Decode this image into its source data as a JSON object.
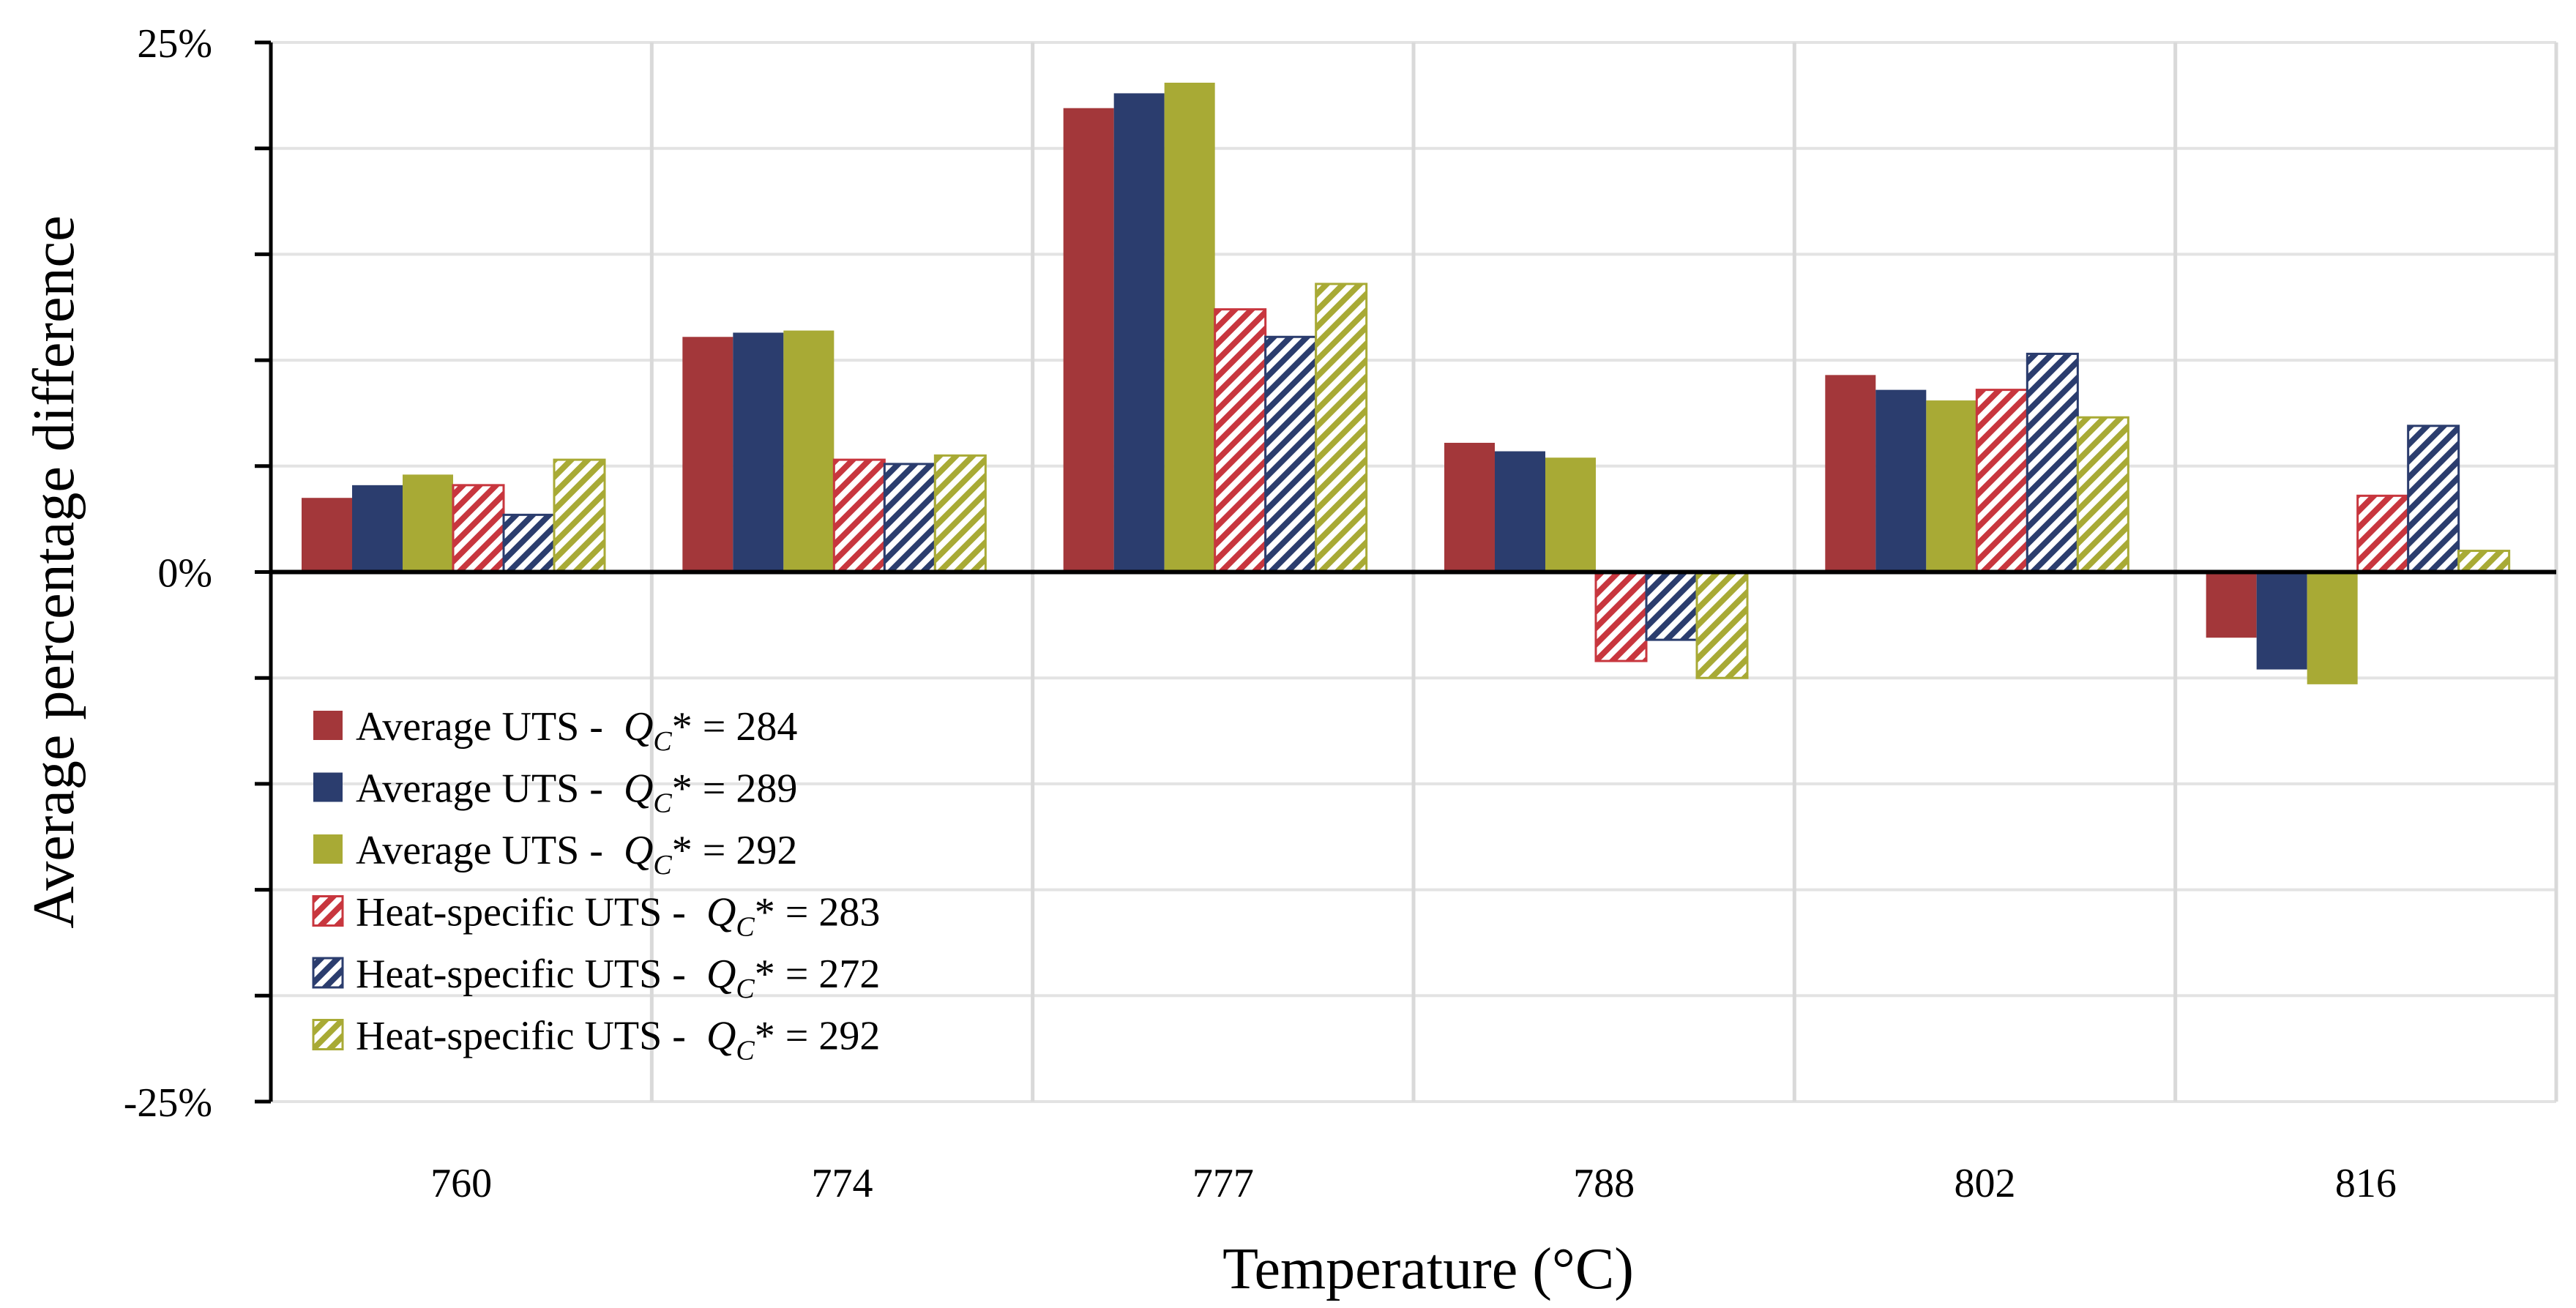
{
  "chart_data": {
    "type": "bar",
    "title": "",
    "xlabel": "Temperature (°C)",
    "ylabel": "Average percentage difference",
    "ylim": [
      -25,
      25
    ],
    "y_ticks": [
      {
        "value": 25,
        "label": "25%"
      },
      {
        "value": 0,
        "label": "0%"
      },
      {
        "value": -25,
        "label": "-25%"
      }
    ],
    "grid": true,
    "legend_position": "bottom-left",
    "categories": [
      "760",
      "774",
      "777",
      "788",
      "802",
      "816"
    ],
    "series": [
      {
        "name": "Average UTS - Q_C* = 284",
        "label_prefix": "Average UTS - ",
        "q_value": "284",
        "color": "#A3373A",
        "pattern": "solid",
        "values": [
          3.5,
          11.1,
          21.9,
          6.1,
          9.3,
          -3.1
        ]
      },
      {
        "name": "Average UTS - Q_C* = 289",
        "label_prefix": "Average UTS - ",
        "q_value": "289",
        "color": "#2B3D6E",
        "pattern": "solid",
        "values": [
          4.1,
          11.3,
          22.6,
          5.7,
          8.6,
          -4.6
        ]
      },
      {
        "name": "Average UTS - Q_C* = 292",
        "label_prefix": "Average UTS - ",
        "q_value": "292",
        "color": "#A8AA35",
        "pattern": "solid",
        "values": [
          4.6,
          11.4,
          23.1,
          5.4,
          8.1,
          -5.3
        ]
      },
      {
        "name": "Heat-specific UTS - Q_C* = 283",
        "label_prefix": "Heat-specific UTS - ",
        "q_value": "283",
        "color": "#C8363E",
        "pattern": "hatch",
        "values": [
          4.1,
          5.3,
          12.4,
          -4.2,
          8.6,
          3.6
        ]
      },
      {
        "name": "Heat-specific UTS - Q_C* = 272",
        "label_prefix": "Heat-specific UTS - ",
        "q_value": "272",
        "color": "#2B3D6E",
        "pattern": "hatch",
        "values": [
          2.7,
          5.1,
          11.1,
          -3.2,
          10.3,
          6.9
        ]
      },
      {
        "name": "Heat-specific UTS - Q_C* = 292",
        "label_prefix": "Heat-specific UTS - ",
        "q_value": "292",
        "color": "#A8AA35",
        "pattern": "hatch",
        "values": [
          5.3,
          5.5,
          13.6,
          -5.0,
          7.3,
          1.0
        ]
      }
    ]
  }
}
